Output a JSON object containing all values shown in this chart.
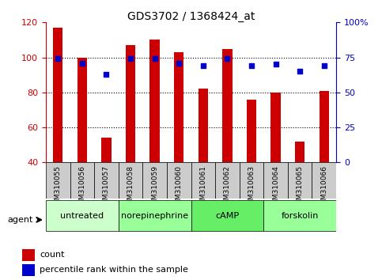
{
  "title": "GDS3702 / 1368424_at",
  "samples": [
    "GSM310055",
    "GSM310056",
    "GSM310057",
    "GSM310058",
    "GSM310059",
    "GSM310060",
    "GSM310061",
    "GSM310062",
    "GSM310063",
    "GSM310064",
    "GSM310065",
    "GSM310066"
  ],
  "counts": [
    117,
    100,
    54,
    107,
    110,
    103,
    82,
    105,
    76,
    80,
    52,
    81
  ],
  "percentiles": [
    74,
    71,
    63,
    74,
    74,
    71,
    69,
    74,
    69,
    70,
    65,
    69
  ],
  "ylim_left": [
    40,
    120
  ],
  "ylim_right": [
    0,
    100
  ],
  "yticks_left": [
    40,
    60,
    80,
    100,
    120
  ],
  "yticks_right": [
    0,
    25,
    50,
    75,
    100
  ],
  "ytick_labels_right": [
    "0",
    "25",
    "50",
    "75",
    "100%"
  ],
  "bar_color": "#cc0000",
  "scatter_color": "#0000cc",
  "bar_width": 0.4,
  "groups": [
    {
      "label": "untreated",
      "start": 0,
      "end": 3,
      "color": "#ccffcc"
    },
    {
      "label": "norepinephrine",
      "start": 3,
      "end": 6,
      "color": "#99ff99"
    },
    {
      "label": "cAMP",
      "start": 6,
      "end": 9,
      "color": "#66ee66"
    },
    {
      "label": "forskolin",
      "start": 9,
      "end": 12,
      "color": "#99ff99"
    }
  ],
  "agent_label": "agent",
  "legend_count_label": "count",
  "legend_percentile_label": "percentile rank within the sample",
  "tick_color_left": "#cc0000",
  "tick_color_right": "#0000cc",
  "sample_band_color": "#cccccc"
}
